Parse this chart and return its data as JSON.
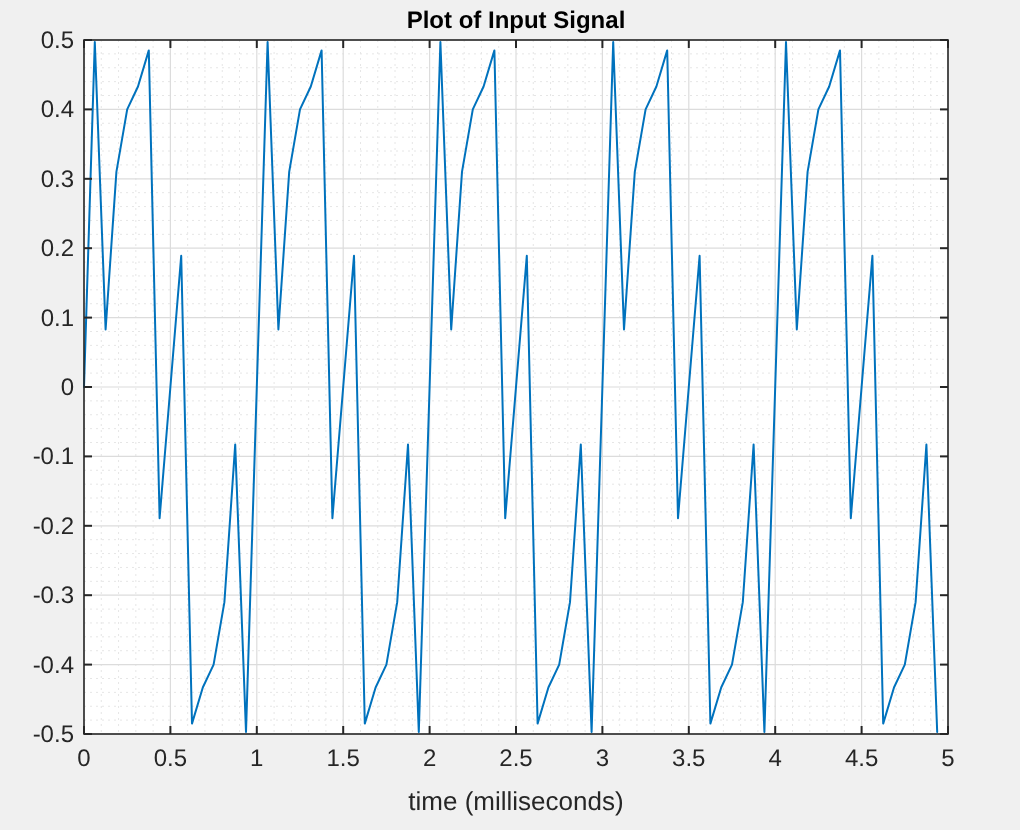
{
  "chart_data": {
    "type": "line",
    "title": "Plot of Input Signal",
    "xlabel": "time (milliseconds)",
    "x": [
      0,
      0.0625,
      0.125,
      0.1875,
      0.25,
      0.3125,
      0.375,
      0.4375,
      0.5,
      0.5625,
      0.625,
      0.6875,
      0.75,
      0.8125,
      0.875,
      0.9375,
      1,
      1.0625,
      1.125,
      1.1875,
      1.25,
      1.3125,
      1.375,
      1.4375,
      1.5,
      1.5625,
      1.625,
      1.6875,
      1.75,
      1.8125,
      1.875,
      1.9375,
      2,
      2.0625,
      2.125,
      2.1875,
      2.25,
      2.3125,
      2.375,
      2.4375,
      2.5,
      2.5625,
      2.625,
      2.6875,
      2.75,
      2.8125,
      2.875,
      2.9375,
      3,
      3.0625,
      3.125,
      3.1875,
      3.25,
      3.3125,
      3.375,
      3.4375,
      3.5,
      3.5625,
      3.625,
      3.6875,
      3.75,
      3.8125,
      3.875,
      3.9375,
      4,
      4.0625,
      4.125,
      4.1875,
      4.25,
      4.3125,
      4.375,
      4.4375,
      4.5,
      4.5625,
      4.625,
      4.6875,
      4.75,
      4.8125,
      4.875,
      4.9375
    ],
    "series": [
      {
        "color": "#0072bd",
        "values": [
          0,
          0.497,
          0.083,
          0.31,
          0.4,
          0.433,
          0.485,
          -0.189,
          0,
          0.189,
          -0.485,
          -0.433,
          -0.4,
          -0.31,
          -0.083,
          -0.497,
          0,
          0.497,
          0.083,
          0.31,
          0.4,
          0.433,
          0.485,
          -0.189,
          0,
          0.189,
          -0.485,
          -0.433,
          -0.4,
          -0.31,
          -0.083,
          -0.497,
          0,
          0.497,
          0.083,
          0.31,
          0.4,
          0.433,
          0.485,
          -0.189,
          0,
          0.189,
          -0.485,
          -0.433,
          -0.4,
          -0.31,
          -0.083,
          -0.497,
          0,
          0.497,
          0.083,
          0.31,
          0.4,
          0.433,
          0.485,
          -0.189,
          0,
          0.189,
          -0.485,
          -0.433,
          -0.4,
          -0.31,
          -0.083,
          -0.497,
          0,
          0.497,
          0.083,
          0.31,
          0.4,
          0.433,
          0.485,
          -0.189,
          0,
          0.189,
          -0.485,
          -0.433,
          -0.4,
          -0.31,
          -0.083,
          -0.497
        ]
      }
    ],
    "xlim": [
      0,
      5
    ],
    "xticks": [
      0,
      0.5,
      1,
      1.5,
      2,
      2.5,
      3,
      3.5,
      4,
      4.5,
      5
    ],
    "ylim": [
      -0.5,
      0.5
    ],
    "yticks": [
      -0.5,
      -0.4,
      -0.3,
      -0.2,
      -0.1,
      0,
      0.1,
      0.2,
      0.3,
      0.4,
      0.5
    ],
    "grid": true,
    "marker": "none",
    "line_style": "solid"
  }
}
